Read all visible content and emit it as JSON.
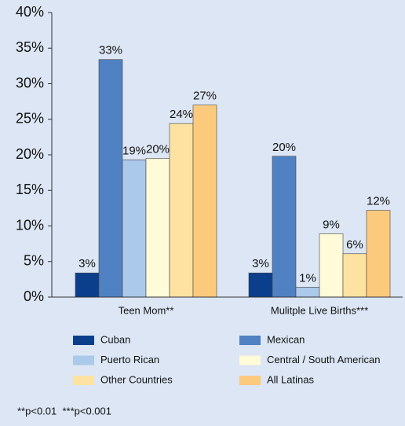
{
  "chart_data": {
    "type": "bar",
    "categories": [
      "Teen Mom**",
      "Mulitple Live Births***"
    ],
    "series": [
      {
        "name": "Cuban",
        "color": "#0b3f8c",
        "values": [
          3.4,
          3.4
        ],
        "value_labels": [
          "3%",
          "3%"
        ]
      },
      {
        "name": "Mexican",
        "color": "#5081c2",
        "values": [
          33.4,
          19.8
        ],
        "value_labels": [
          "33%",
          "20%"
        ]
      },
      {
        "name": "Puerto Rican",
        "color": "#abc9ea",
        "values": [
          19.3,
          1.4
        ],
        "value_labels": [
          "19%",
          "1%"
        ]
      },
      {
        "name": "Central / South American",
        "color": "#fffbd8",
        "values": [
          19.5,
          8.9
        ],
        "value_labels": [
          "20%",
          "9%"
        ]
      },
      {
        "name": "Other Countries",
        "color": "#fde2a2",
        "values": [
          24.4,
          6.1
        ],
        "value_labels": [
          "24%",
          "6%"
        ]
      },
      {
        "name": "All Latinas",
        "color": "#fcca7c",
        "values": [
          27.0,
          12.2
        ],
        "value_labels": [
          "27%",
          "12%"
        ]
      }
    ],
    "ylim": [
      0,
      40
    ],
    "yticks": [
      {
        "value": 0,
        "label": "0%"
      },
      {
        "value": 5,
        "label": "5%"
      },
      {
        "value": 10,
        "label": "10%"
      },
      {
        "value": 15,
        "label": "15%"
      },
      {
        "value": 20,
        "label": "20%"
      },
      {
        "value": 25,
        "label": "25%"
      },
      {
        "value": 30,
        "label": "30%"
      },
      {
        "value": 35,
        "label": "35%"
      },
      {
        "value": 40,
        "label": "40%"
      }
    ],
    "annotations": [
      "**p<0.01  ***p<0.001"
    ]
  }
}
